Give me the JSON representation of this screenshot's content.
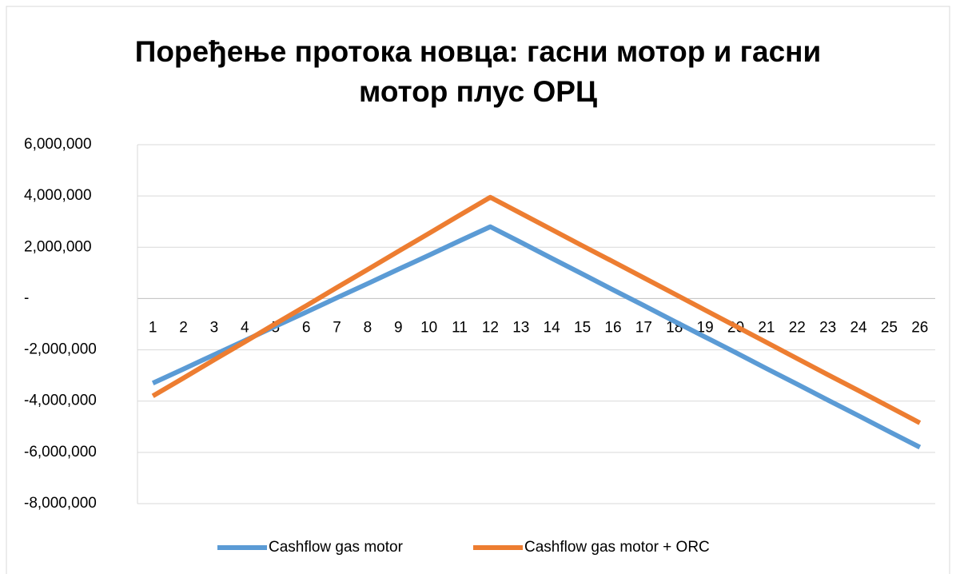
{
  "chart_data": {
    "type": "line",
    "title": "Поређење протока новца: гасни мотор и гасни мотор плус ОРЦ",
    "categories": [
      "1",
      "2",
      "3",
      "4",
      "5",
      "6",
      "7",
      "8",
      "9",
      "10",
      "11",
      "12",
      "13",
      "14",
      "15",
      "16",
      "17",
      "18",
      "19",
      "20",
      "21",
      "22",
      "23",
      "24",
      "25",
      "26"
    ],
    "series": [
      {
        "name": "Cashflow gas motor",
        "color": "#5b9bd5",
        "values": [
          -3300000,
          -2750000,
          -2190000,
          -1640000,
          -1080000,
          -530000,
          30000,
          580000,
          1140000,
          1690000,
          2250000,
          2800000,
          2190000,
          1570000,
          960000,
          340000,
          -270000,
          -890000,
          -1500000,
          -2110000,
          -2730000,
          -3340000,
          -3960000,
          -4570000,
          -5190000,
          -5800000
        ]
      },
      {
        "name": "Cashflow gas motor + ORC",
        "color": "#ed7d31",
        "values": [
          -3800000,
          -3100000,
          -2390000,
          -1690000,
          -980000,
          -280000,
          430000,
          1130000,
          1840000,
          2540000,
          3250000,
          3950000,
          3320000,
          2690000,
          2060000,
          1440000,
          810000,
          180000,
          -450000,
          -1080000,
          -1710000,
          -2340000,
          -2970000,
          -3590000,
          -4220000,
          -4850000
        ]
      }
    ],
    "ylim": [
      -8000000,
      6000000
    ],
    "yticks": [
      {
        "value": -8000000,
        "label": "-8,000,000"
      },
      {
        "value": -6000000,
        "label": "-6,000,000"
      },
      {
        "value": -4000000,
        "label": "-4,000,000"
      },
      {
        "value": -2000000,
        "label": "-2,000,000"
      },
      {
        "value": 0,
        "label": "-"
      },
      {
        "value": 2000000,
        "label": "2,000,000"
      },
      {
        "value": 4000000,
        "label": "4,000,000"
      },
      {
        "value": 6000000,
        "label": "6,000,000"
      }
    ],
    "grid": true,
    "legend": "bottom"
  }
}
